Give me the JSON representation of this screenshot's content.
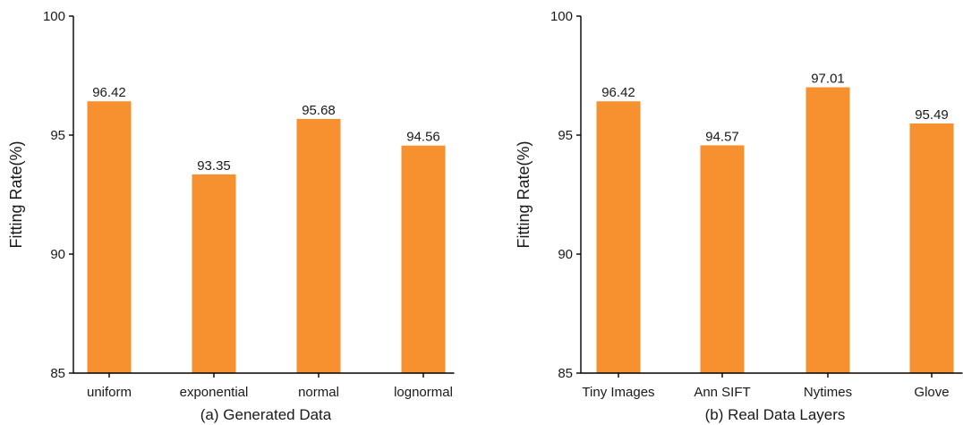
{
  "chart_data": [
    {
      "type": "bar",
      "title": "",
      "caption": "(a) Generated Data",
      "xlabel": "",
      "ylabel": "Fitting Rate(%)",
      "ylim": [
        85,
        100
      ],
      "yticks": [
        85,
        90,
        95,
        100
      ],
      "grid": false,
      "categories": [
        "uniform",
        "exponential",
        "normal",
        "lognormal"
      ],
      "values": [
        96.42,
        93.35,
        95.68,
        94.56
      ],
      "value_labels": [
        "96.42",
        "93.35",
        "95.68",
        "94.56"
      ],
      "bar_color": "#F7902F"
    },
    {
      "type": "bar",
      "title": "",
      "caption": "(b) Real Data Layers",
      "xlabel": "",
      "ylabel": "Fitting Rate(%)",
      "ylim": [
        85,
        100
      ],
      "yticks": [
        85,
        90,
        95,
        100
      ],
      "grid": false,
      "categories": [
        "Tiny Images",
        "Ann SIFT",
        "Nytimes",
        "Glove"
      ],
      "values": [
        96.42,
        94.57,
        97.01,
        95.49
      ],
      "value_labels": [
        "96.42",
        "94.57",
        "97.01",
        "95.49"
      ],
      "bar_color": "#F7902F"
    }
  ]
}
